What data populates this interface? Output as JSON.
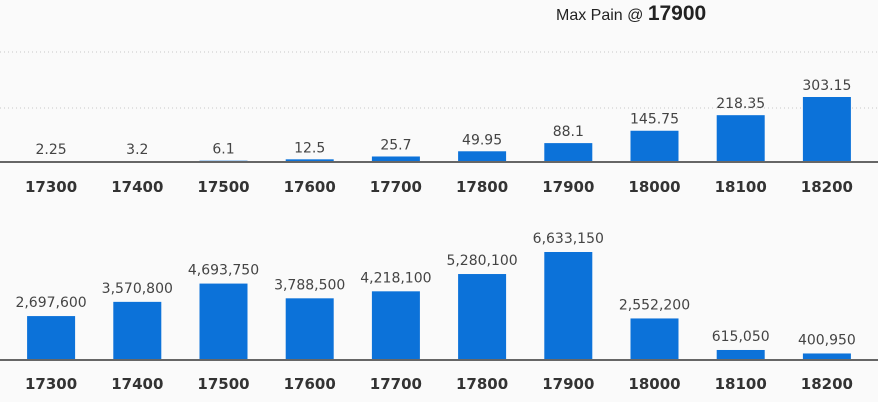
{
  "header": {
    "prefix": "Max Pain @ ",
    "value": "17900"
  },
  "chart_data": [
    {
      "type": "bar",
      "categories": [
        "17300",
        "17400",
        "17500",
        "17600",
        "17700",
        "17800",
        "17900",
        "18000",
        "18100",
        "18200"
      ],
      "values": [
        2.25,
        3.2,
        6.1,
        12.5,
        25.7,
        49.95,
        88.1,
        145.75,
        218.35,
        303.15
      ],
      "value_labels": [
        "2.25",
        "3.2",
        "6.1",
        "12.5",
        "25.7",
        "49.95",
        "88.1",
        "145.75",
        "218.35",
        "303.15"
      ],
      "color": "#0c72d9",
      "grid": true
    },
    {
      "type": "bar",
      "categories": [
        "17300",
        "17400",
        "17500",
        "17600",
        "17700",
        "17800",
        "17900",
        "18000",
        "18100",
        "18200"
      ],
      "values": [
        2697600,
        3570800,
        4693750,
        3788500,
        4218100,
        5280100,
        6633150,
        2552200,
        615050,
        400950
      ],
      "value_labels": [
        "2,697,600",
        "3,570,800",
        "4,693,750",
        "3,788,500",
        "4,218,100",
        "5,280,100",
        "6,633,150",
        "2,552,200",
        "615,050",
        "400,950"
      ],
      "color": "#0c72d9",
      "grid": false
    }
  ]
}
